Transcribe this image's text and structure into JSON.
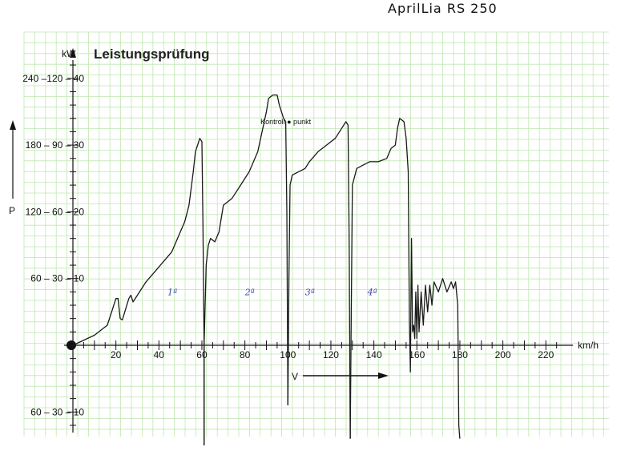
{
  "chart_data": {
    "type": "line",
    "title": "Leistungsprüfung",
    "handwritten_note": "AprilLia RS 250",
    "xlabel": "km/h",
    "ylabel": "P",
    "yunit": "kW",
    "xlim": [
      0,
      240
    ],
    "ylim": [
      -12,
      44
    ],
    "x_ticks": [
      "20",
      "40",
      "60",
      "80",
      "100",
      "120",
      "140",
      "160",
      "180",
      "200",
      "220"
    ],
    "y_ticks": [
      {
        "value": 40,
        "label": "240 –120 – 40"
      },
      {
        "value": 30,
        "label": "180 – 90 – 30"
      },
      {
        "value": 20,
        "label": "120 – 60 – 20"
      },
      {
        "value": 10,
        "label": "60 – 30 – 10"
      },
      {
        "value": -10,
        "label": "60 – 30 – 10"
      }
    ],
    "gear_labels": [
      {
        "x": 44,
        "text": "1ª"
      },
      {
        "x": 80,
        "text": "2ª"
      },
      {
        "x": 108,
        "text": "3ª"
      },
      {
        "x": 137,
        "text": "4ª"
      }
    ],
    "annotation": {
      "x": 99,
      "y": 33.5,
      "text": "Kontroll ● punkt"
    },
    "direction_label": "V",
    "grid": true,
    "series": [
      {
        "points": [
          [
            0,
            0
          ],
          [
            10,
            1.5
          ],
          [
            16,
            3
          ],
          [
            18,
            5
          ],
          [
            20,
            7
          ],
          [
            21,
            7
          ],
          [
            22,
            4
          ],
          [
            23,
            3.8
          ],
          [
            26,
            7
          ],
          [
            27,
            7.5
          ],
          [
            28,
            6.5
          ],
          [
            30,
            7.5
          ],
          [
            34,
            9.5
          ],
          [
            38,
            11
          ],
          [
            42,
            12.5
          ],
          [
            46,
            14
          ],
          [
            50,
            17
          ],
          [
            52,
            18.5
          ],
          [
            54,
            21
          ],
          [
            56,
            26
          ],
          [
            57,
            29
          ],
          [
            59,
            31
          ],
          [
            60,
            30.5
          ],
          [
            60.5,
            18
          ],
          [
            61,
            0
          ],
          [
            61,
            -15
          ]
        ]
      },
      {
        "points": [
          [
            61,
            -15
          ],
          [
            61,
            0
          ],
          [
            62,
            12
          ],
          [
            63,
            15
          ],
          [
            64,
            16
          ],
          [
            66,
            15.5
          ],
          [
            68,
            17
          ],
          [
            70,
            21
          ],
          [
            74,
            22
          ],
          [
            78,
            24
          ],
          [
            82,
            26
          ],
          [
            86,
            29
          ],
          [
            88,
            32
          ],
          [
            90,
            35
          ],
          [
            91,
            37
          ],
          [
            93,
            37.5
          ],
          [
            95,
            37.5
          ],
          [
            96,
            36
          ],
          [
            98,
            34
          ],
          [
            99,
            33.5
          ],
          [
            99.5,
            20
          ],
          [
            100,
            -9
          ]
        ]
      },
      {
        "points": [
          [
            100,
            -9
          ],
          [
            100.5,
            10
          ],
          [
            101,
            24
          ],
          [
            102,
            25.5
          ],
          [
            105,
            26
          ],
          [
            108,
            26.5
          ],
          [
            110,
            27.5
          ],
          [
            114,
            29
          ],
          [
            118,
            30
          ],
          [
            122,
            31
          ],
          [
            125,
            32.5
          ],
          [
            127,
            33.5
          ],
          [
            128,
            33
          ],
          [
            128.5,
            15
          ],
          [
            129,
            -14
          ]
        ]
      },
      {
        "points": [
          [
            129,
            -14
          ],
          [
            129.5,
            5
          ],
          [
            130,
            24
          ],
          [
            132,
            26.5
          ],
          [
            135,
            27
          ],
          [
            138,
            27.5
          ],
          [
            142,
            27.5
          ],
          [
            146,
            28
          ],
          [
            148,
            29.5
          ],
          [
            150,
            30
          ],
          [
            151,
            32.5
          ],
          [
            152,
            34
          ],
          [
            154,
            33.5
          ],
          [
            155,
            31
          ],
          [
            156,
            26
          ],
          [
            156.5,
            4
          ],
          [
            157,
            -4
          ],
          [
            157.5,
            16
          ],
          [
            158,
            2
          ],
          [
            158.5,
            3
          ],
          [
            159,
            1
          ],
          [
            159.5,
            8
          ],
          [
            160,
            1
          ],
          [
            160.5,
            9
          ],
          [
            161,
            2
          ],
          [
            162,
            8
          ],
          [
            163,
            3
          ],
          [
            164,
            9
          ],
          [
            165,
            5
          ],
          [
            166,
            9
          ],
          [
            167,
            6
          ],
          [
            168,
            9.5
          ],
          [
            170,
            8
          ],
          [
            172,
            10
          ],
          [
            174,
            8
          ],
          [
            176,
            9.5
          ],
          [
            177,
            8.5
          ],
          [
            178,
            9.5
          ],
          [
            179,
            6
          ],
          [
            179.5,
            -12
          ],
          [
            180,
            -14
          ]
        ]
      }
    ]
  }
}
